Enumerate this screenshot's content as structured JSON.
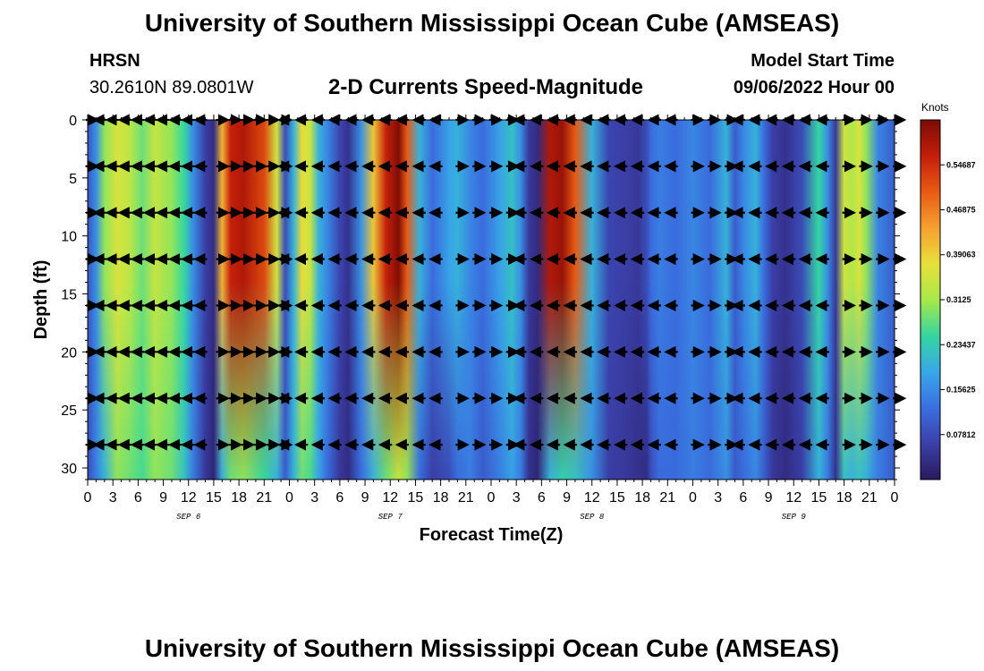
{
  "header": {
    "title": "University of Southern Mississippi Ocean Cube (AMSEAS)",
    "station": "HRSN",
    "location": "30.2610N  89.0801W",
    "subtitle": "2-D Currents Speed-Magnitude",
    "model_start_label": "Model Start Time",
    "model_start_value": "09/06/2022 Hour 00",
    "footer_title": "University of Southern Mississippi Ocean Cube (AMSEAS)"
  },
  "colors": {
    "ramp": [
      "#2a1a5e",
      "#3b3fa8",
      "#3a6fe0",
      "#38a8e8",
      "#35d6a0",
      "#a8e84a",
      "#e8e03a",
      "#f5a030",
      "#e85a14",
      "#c41e0a",
      "#7a0c06"
    ]
  },
  "chart_data": {
    "type": "heatmap",
    "title": "2-D Currents Speed-Magnitude",
    "xlabel": "Forecast Time(Z)",
    "ylabel": "Depth (ft)",
    "x_ticks": [
      "0",
      "3",
      "6",
      "9",
      "12",
      "15",
      "18",
      "21",
      "0",
      "3",
      "6",
      "9",
      "12",
      "15",
      "18",
      "21",
      "0",
      "3",
      "6",
      "9",
      "12",
      "15",
      "18",
      "21",
      "0",
      "3",
      "6",
      "9",
      "12",
      "15",
      "18",
      "21",
      "0"
    ],
    "x_range_hours": [
      0,
      96
    ],
    "date_labels": [
      {
        "label": "SEP 6",
        "hour": 12
      },
      {
        "label": "SEP 7",
        "hour": 36
      },
      {
        "label": "SEP 8",
        "hour": 60
      },
      {
        "label": "SEP 9",
        "hour": 84
      }
    ],
    "y_ticks": [
      "0",
      "5",
      "10",
      "15",
      "20",
      "25",
      "30"
    ],
    "y_range_ft": [
      0,
      31
    ],
    "colorbar": {
      "unit": "Knots",
      "min": 0,
      "max": 0.625,
      "labels": [
        "0.54687",
        "0.46875",
        "0.39063",
        "0.3125",
        "0.23437",
        "0.15625",
        "0.07812"
      ]
    },
    "speed_profile": {
      "hours": [
        0,
        1,
        2,
        3.5,
        5,
        6.5,
        8,
        10,
        11.5,
        12.5,
        14,
        15,
        16,
        17,
        18.5,
        21,
        22.5,
        23.5,
        24.5,
        25.5,
        26.5,
        27.5,
        28.5,
        30,
        31,
        32.5,
        34,
        35.5,
        37,
        38,
        39.5,
        41,
        43,
        44,
        45.5,
        47,
        49,
        50.5,
        51.5,
        52.5,
        53.5,
        55,
        56.5,
        58,
        60,
        62,
        64,
        65.5,
        66.5,
        67,
        68,
        70,
        72,
        74,
        76,
        77,
        78,
        79.5,
        80.5,
        81.5,
        83,
        85,
        87,
        88,
        89,
        90,
        91,
        91.8,
        92.6,
        94,
        96
      ],
      "speeds_top": [
        0.09,
        0.16,
        0.3,
        0.36,
        0.33,
        0.28,
        0.34,
        0.3,
        0.25,
        0.16,
        0.06,
        0.03,
        0.42,
        0.56,
        0.58,
        0.52,
        0.35,
        0.08,
        0.2,
        0.38,
        0.34,
        0.2,
        0.15,
        0.07,
        0.04,
        0.16,
        0.4,
        0.56,
        0.62,
        0.5,
        0.2,
        0.12,
        0.18,
        0.2,
        0.15,
        0.12,
        0.18,
        0.22,
        0.16,
        0.05,
        0.03,
        0.58,
        0.6,
        0.5,
        0.2,
        0.07,
        0.06,
        0.05,
        0.08,
        0.12,
        0.14,
        0.12,
        0.15,
        0.12,
        0.2,
        0.1,
        0.15,
        0.2,
        0.12,
        0.06,
        0.04,
        0.08,
        0.25,
        0.16,
        0.05,
        0.35,
        0.32,
        0.36,
        0.3,
        0.15,
        0.1
      ],
      "speeds_bottom": [
        0.08,
        0.14,
        0.2,
        0.3,
        0.28,
        0.26,
        0.3,
        0.28,
        0.22,
        0.14,
        0.05,
        0.02,
        0.2,
        0.28,
        0.3,
        0.25,
        0.2,
        0.1,
        0.2,
        0.28,
        0.26,
        0.18,
        0.12,
        0.05,
        0.03,
        0.12,
        0.2,
        0.28,
        0.34,
        0.3,
        0.12,
        0.06,
        0.08,
        0.12,
        0.14,
        0.1,
        0.14,
        0.18,
        0.14,
        0.04,
        0.02,
        0.2,
        0.24,
        0.22,
        0.16,
        0.06,
        0.05,
        0.04,
        0.03,
        0.08,
        0.12,
        0.12,
        0.14,
        0.12,
        0.16,
        0.1,
        0.12,
        0.15,
        0.1,
        0.05,
        0.03,
        0.06,
        0.2,
        0.14,
        0.04,
        0.22,
        0.2,
        0.22,
        0.2,
        0.14,
        0.1
      ]
    },
    "arrows": {
      "depths_ft": [
        0,
        4,
        8,
        12,
        16,
        20,
        24,
        28
      ],
      "hours": [
        0,
        2,
        3.5,
        5,
        6.5,
        8,
        9.5,
        11,
        12.5,
        14,
        15.5,
        17,
        18.5,
        20,
        21.5,
        23,
        24,
        26,
        28,
        30,
        32,
        34,
        36,
        38,
        40,
        42,
        44,
        46,
        48,
        50,
        52,
        54,
        56,
        58,
        60,
        62,
        64,
        66,
        68,
        70,
        72,
        74,
        76,
        78,
        80,
        82,
        84,
        86,
        88,
        90,
        92,
        94,
        96
      ],
      "direction_deg": [
        0,
        180,
        180,
        180,
        180,
        180,
        180,
        180,
        180,
        180,
        0,
        0,
        0,
        0,
        0,
        0,
        180,
        180,
        180,
        180,
        180,
        180,
        180,
        180,
        180,
        180,
        0,
        0,
        0,
        0,
        180,
        180,
        180,
        180,
        180,
        180,
        180,
        180,
        180,
        180,
        0,
        0,
        0,
        180,
        180,
        180,
        180,
        180,
        180,
        0,
        0,
        0,
        0
      ]
    }
  }
}
